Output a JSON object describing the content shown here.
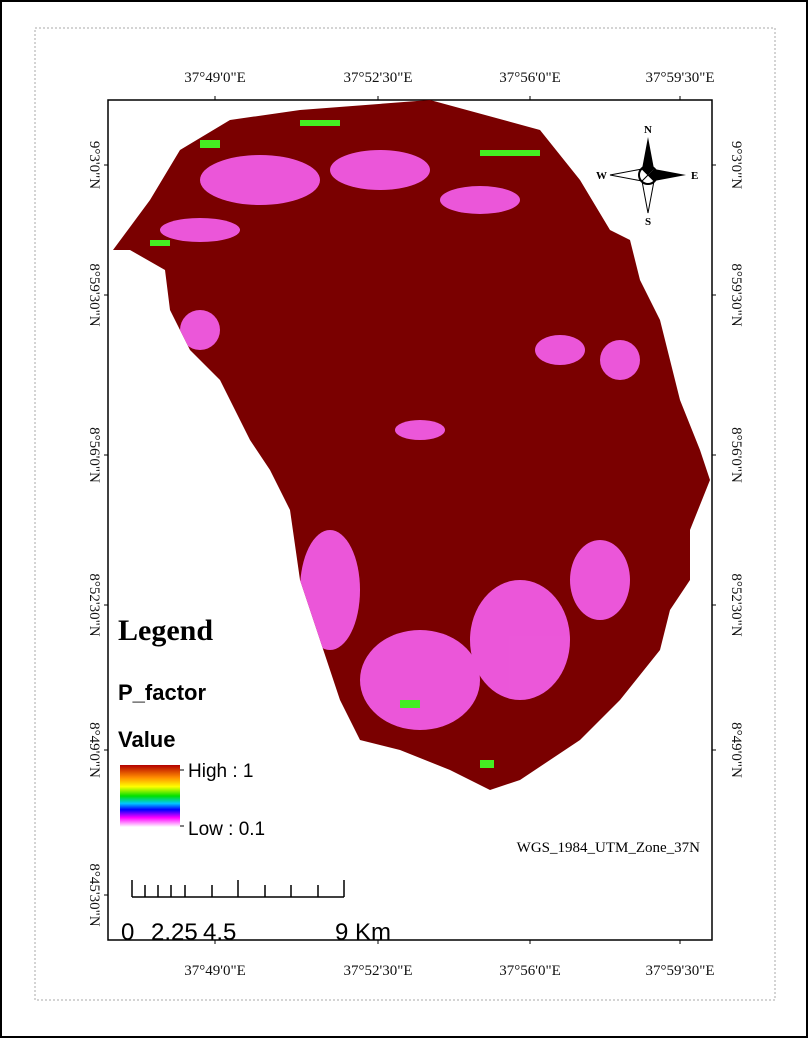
{
  "map": {
    "x_labels_top": [
      "37°49'0\"E",
      "37°52'30\"E",
      "37°56'0\"E",
      "37°59'30\"E"
    ],
    "x_labels_bottom": [
      "37°49'0\"E",
      "37°52'30\"E",
      "37°56'0\"E",
      "37°59'30\"E"
    ],
    "y_labels_left": [
      "9°3'0\"N",
      "8°59'30\"N",
      "8°56'0\"N",
      "8°52'30\"N",
      "8°49'0\"N",
      "8°45'30\"N"
    ],
    "y_labels_right": [
      "9°3'0\"N",
      "8°59'30\"N",
      "8°56'0\"N",
      "8°52'30\"N",
      "8°49'0\"N"
    ],
    "north_arrow": {
      "n": "N",
      "s": "S",
      "e": "E",
      "w": "W"
    },
    "legend": {
      "title": "Legend",
      "layer": "P_factor",
      "field": "Value",
      "high": "High : 1",
      "low": "Low : 0.1"
    },
    "scale_bar": {
      "labels": [
        "0",
        "2.25",
        "4.5",
        "9 Km"
      ]
    },
    "projection": "WGS_1984_UTM_Zone_37N"
  }
}
